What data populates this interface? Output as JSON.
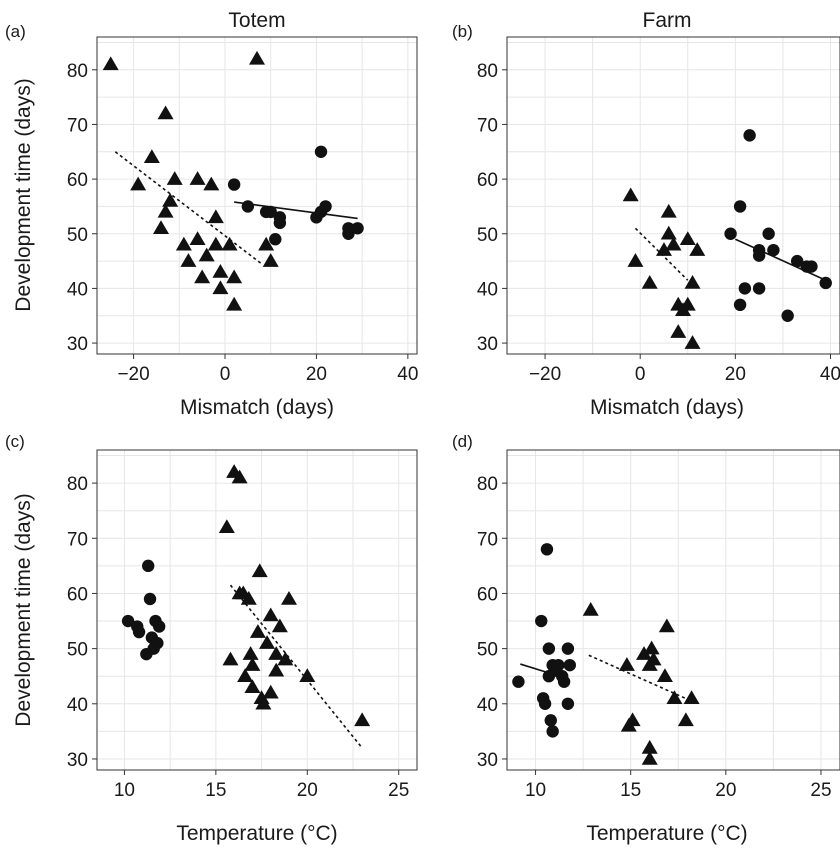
{
  "chart_data": [
    {
      "panel_label": "(a)",
      "title": "Totem",
      "type": "scatter",
      "xlabel": "Mismatch (days)",
      "ylabel": "Development time (days)",
      "xlim": [
        -28,
        42
      ],
      "ylim": [
        28,
        86
      ],
      "xticks": [
        -20,
        0,
        20,
        40
      ],
      "xtick_labels": [
        "−20",
        "0",
        "20",
        "40"
      ],
      "yticks": [
        30,
        40,
        50,
        60,
        70,
        80
      ],
      "ytick_labels": [
        "30",
        "40",
        "50",
        "60",
        "70",
        "80"
      ],
      "grid": true,
      "series": [
        {
          "marker": "triangle",
          "points": [
            [
              -25,
              81
            ],
            [
              -19,
              59
            ],
            [
              -16,
              64
            ],
            [
              -14,
              51
            ],
            [
              -13,
              72
            ],
            [
              -12,
              56
            ],
            [
              -11,
              60
            ],
            [
              -13,
              54
            ],
            [
              -9,
              48
            ],
            [
              -8,
              45
            ],
            [
              -6,
              60
            ],
            [
              -6,
              49
            ],
            [
              -5,
              42
            ],
            [
              -4,
              46
            ],
            [
              -3,
              59
            ],
            [
              -2,
              53
            ],
            [
              -2,
              48
            ],
            [
              -1,
              43
            ],
            [
              -1,
              40
            ],
            [
              1,
              48
            ],
            [
              2,
              42
            ],
            [
              2,
              37
            ],
            [
              7,
              82
            ],
            [
              9,
              48
            ],
            [
              10,
              45
            ]
          ]
        },
        {
          "marker": "circle",
          "points": [
            [
              2,
              59
            ],
            [
              5,
              55
            ],
            [
              9,
              54
            ],
            [
              10,
              54
            ],
            [
              11,
              49
            ],
            [
              12,
              53
            ],
            [
              12,
              52
            ],
            [
              20,
              53
            ],
            [
              21,
              54
            ],
            [
              21,
              65
            ],
            [
              22,
              55
            ],
            [
              27,
              51
            ],
            [
              27,
              50
            ],
            [
              29,
              51
            ]
          ]
        }
      ],
      "fits": [
        {
          "style": "dotted",
          "from": [
            -24,
            65
          ],
          "to": [
            8,
            44.5
          ]
        },
        {
          "style": "solid",
          "from": [
            2,
            55.8
          ],
          "to": [
            29,
            52.8
          ]
        }
      ]
    },
    {
      "panel_label": "(b)",
      "title": "Farm",
      "type": "scatter",
      "xlabel": "Mismatch (days)",
      "ylabel": "",
      "xlim": [
        -28,
        42
      ],
      "ylim": [
        28,
        86
      ],
      "xticks": [
        -20,
        0,
        20,
        40
      ],
      "xtick_labels": [
        "−20",
        "0",
        "20",
        "40"
      ],
      "yticks": [
        30,
        40,
        50,
        60,
        70,
        80
      ],
      "ytick_labels": [
        "30",
        "40",
        "50",
        "60",
        "70",
        "80"
      ],
      "grid": true,
      "series": [
        {
          "marker": "triangle",
          "points": [
            [
              -2,
              57
            ],
            [
              -1,
              45
            ],
            [
              2,
              41
            ],
            [
              5,
              47
            ],
            [
              6,
              54
            ],
            [
              6,
              50
            ],
            [
              7,
              48
            ],
            [
              8,
              37
            ],
            [
              8,
              32
            ],
            [
              9,
              36
            ],
            [
              10,
              37
            ],
            [
              10,
              49
            ],
            [
              11,
              30
            ],
            [
              11,
              41
            ],
            [
              12,
              47
            ]
          ]
        },
        {
          "marker": "circle",
          "points": [
            [
              19,
              50
            ],
            [
              21,
              55
            ],
            [
              21,
              37
            ],
            [
              22,
              40
            ],
            [
              23,
              68
            ],
            [
              25,
              40
            ],
            [
              25,
              47
            ],
            [
              25,
              46
            ],
            [
              27,
              50
            ],
            [
              28,
              47
            ],
            [
              31,
              35
            ],
            [
              33,
              45
            ],
            [
              35,
              44
            ],
            [
              36,
              44
            ],
            [
              39,
              41
            ]
          ]
        }
      ],
      "fits": [
        {
          "style": "dotted",
          "from": [
            -1,
            51
          ],
          "to": [
            10,
            41.5
          ]
        },
        {
          "style": "solid",
          "from": [
            20,
            49
          ],
          "to": [
            39,
            41.5
          ]
        }
      ]
    },
    {
      "panel_label": "(c)",
      "title": "",
      "type": "scatter",
      "xlabel": "Temperature (°C)",
      "ylabel": "Development time (days)",
      "xlim": [
        8.5,
        26
      ],
      "ylim": [
        28,
        86
      ],
      "xticks": [
        10,
        15,
        20,
        25
      ],
      "xtick_labels": [
        "10",
        "15",
        "20",
        "25"
      ],
      "yticks": [
        30,
        40,
        50,
        60,
        70,
        80
      ],
      "ytick_labels": [
        "30",
        "40",
        "50",
        "60",
        "70",
        "80"
      ],
      "grid": true,
      "series": [
        {
          "marker": "circle",
          "points": [
            [
              10.2,
              55
            ],
            [
              10.7,
              54
            ],
            [
              10.8,
              53
            ],
            [
              11.2,
              49
            ],
            [
              11.3,
              65
            ],
            [
              11.4,
              59
            ],
            [
              11.5,
              52
            ],
            [
              11.6,
              50
            ],
            [
              11.7,
              55
            ],
            [
              11.8,
              51
            ],
            [
              11.9,
              54
            ]
          ]
        },
        {
          "marker": "triangle",
          "points": [
            [
              15.6,
              72
            ],
            [
              15.8,
              48
            ],
            [
              16.0,
              82
            ],
            [
              16.3,
              81
            ],
            [
              16.3,
              60
            ],
            [
              16.5,
              60
            ],
            [
              16.6,
              45
            ],
            [
              16.8,
              59
            ],
            [
              16.9,
              49
            ],
            [
              17.0,
              47
            ],
            [
              17.0,
              43
            ],
            [
              17.3,
              53
            ],
            [
              17.4,
              64
            ],
            [
              17.5,
              41
            ],
            [
              17.6,
              40
            ],
            [
              17.8,
              51
            ],
            [
              18.0,
              42
            ],
            [
              18.0,
              56
            ],
            [
              18.3,
              49
            ],
            [
              18.3,
              46
            ],
            [
              18.5,
              54
            ],
            [
              18.8,
              48
            ],
            [
              19.0,
              59
            ],
            [
              20.0,
              45
            ],
            [
              23.0,
              37
            ]
          ]
        }
      ],
      "fits": [
        {
          "style": "dotted",
          "from": [
            15.8,
            61.5
          ],
          "to": [
            23,
            32
          ]
        }
      ]
    },
    {
      "panel_label": "(d)",
      "title": "",
      "type": "scatter",
      "xlabel": "Temperature (°C)",
      "ylabel": "",
      "xlim": [
        8.5,
        26
      ],
      "ylim": [
        28,
        86
      ],
      "xticks": [
        10,
        15,
        20,
        25
      ],
      "xtick_labels": [
        "10",
        "15",
        "20",
        "25"
      ],
      "yticks": [
        30,
        40,
        50,
        60,
        70,
        80
      ],
      "ytick_labels": [
        "30",
        "40",
        "50",
        "60",
        "70",
        "80"
      ],
      "grid": true,
      "series": [
        {
          "marker": "circle",
          "points": [
            [
              9.1,
              44
            ],
            [
              10.3,
              55
            ],
            [
              10.4,
              41
            ],
            [
              10.5,
              40
            ],
            [
              10.6,
              68
            ],
            [
              10.7,
              45
            ],
            [
              10.7,
              50
            ],
            [
              10.8,
              37
            ],
            [
              10.9,
              47
            ],
            [
              10.9,
              35
            ],
            [
              11.0,
              46
            ],
            [
              11.2,
              47
            ],
            [
              11.4,
              45
            ],
            [
              11.5,
              44
            ],
            [
              11.7,
              50
            ],
            [
              11.7,
              40
            ],
            [
              11.8,
              47
            ]
          ]
        },
        {
          "marker": "triangle",
          "points": [
            [
              12.9,
              57
            ],
            [
              14.8,
              47
            ],
            [
              14.9,
              36
            ],
            [
              15.1,
              37
            ],
            [
              15.7,
              49
            ],
            [
              16.0,
              47
            ],
            [
              16.0,
              32
            ],
            [
              16.0,
              30
            ],
            [
              16.1,
              50
            ],
            [
              16.2,
              48
            ],
            [
              16.8,
              45
            ],
            [
              16.9,
              54
            ],
            [
              17.3,
              41
            ],
            [
              17.9,
              37
            ],
            [
              18.2,
              41
            ]
          ]
        }
      ],
      "fits": [
        {
          "style": "solid",
          "from": [
            9.2,
            47.2
          ],
          "to": [
            10.5,
            45.8
          ]
        },
        {
          "style": "dotted",
          "from": [
            12.8,
            48.8
          ],
          "to": [
            18,
            40.8
          ]
        }
      ]
    }
  ]
}
